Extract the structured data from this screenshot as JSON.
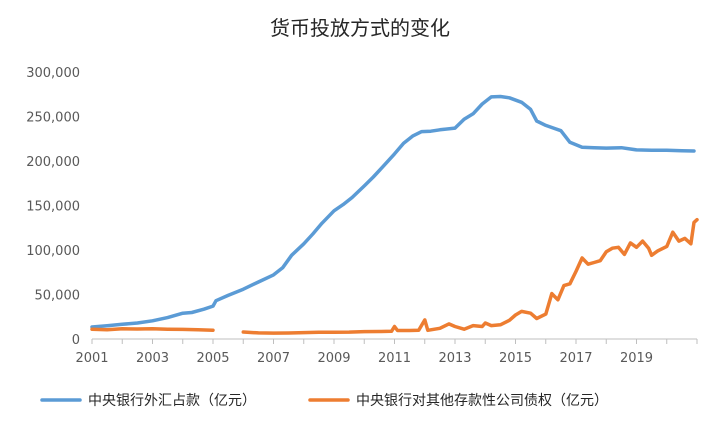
{
  "chart_data": {
    "type": "line",
    "title": "货币投放方式的变化",
    "xlabel": "",
    "ylabel": "",
    "xlim": [
      2001,
      2021
    ],
    "ylim": [
      0,
      300000
    ],
    "x_ticks": [
      2001,
      2003,
      2005,
      2007,
      2009,
      2011,
      2013,
      2015,
      2017,
      2019
    ],
    "y_ticks": [
      "0",
      "50,000",
      "100,000",
      "150,000",
      "200,000",
      "250,000",
      "300,000"
    ],
    "y_tick_values": [
      0,
      50000,
      100000,
      150000,
      200000,
      250000,
      300000
    ],
    "legend_position": "bottom",
    "grid": false,
    "series": [
      {
        "name": "中央银行外汇占款（亿元）",
        "color": "#5b9bd5",
        "points": [
          [
            2001.0,
            13500
          ],
          [
            2001.5,
            14800
          ],
          [
            2002.0,
            16500
          ],
          [
            2002.5,
            18000
          ],
          [
            2003.0,
            20500
          ],
          [
            2003.5,
            24000
          ],
          [
            2004.0,
            29000
          ],
          [
            2004.3,
            29800
          ],
          [
            2004.7,
            33500
          ],
          [
            2005.0,
            37000
          ],
          [
            2005.1,
            43000
          ],
          [
            2005.5,
            49000
          ],
          [
            2006.0,
            56000
          ],
          [
            2006.5,
            64000
          ],
          [
            2007.0,
            72000
          ],
          [
            2007.3,
            80000
          ],
          [
            2007.6,
            94000
          ],
          [
            2008.0,
            107000
          ],
          [
            2008.3,
            118000
          ],
          [
            2008.6,
            130000
          ],
          [
            2009.0,
            144000
          ],
          [
            2009.3,
            151000
          ],
          [
            2009.6,
            159000
          ],
          [
            2010.0,
            172000
          ],
          [
            2010.3,
            182000
          ],
          [
            2010.6,
            193000
          ],
          [
            2011.0,
            208000
          ],
          [
            2011.3,
            220000
          ],
          [
            2011.6,
            228000
          ],
          [
            2011.9,
            233000
          ],
          [
            2012.2,
            233500
          ],
          [
            2012.5,
            235000
          ],
          [
            2013.0,
            237000
          ],
          [
            2013.3,
            247000
          ],
          [
            2013.6,
            253000
          ],
          [
            2013.9,
            264000
          ],
          [
            2014.2,
            272000
          ],
          [
            2014.5,
            272500
          ],
          [
            2014.8,
            271000
          ],
          [
            2015.2,
            266000
          ],
          [
            2015.5,
            258000
          ],
          [
            2015.7,
            245000
          ],
          [
            2016.0,
            240000
          ],
          [
            2016.5,
            234000
          ],
          [
            2016.8,
            221000
          ],
          [
            2017.2,
            215500
          ],
          [
            2017.6,
            215000
          ],
          [
            2018.0,
            214500
          ],
          [
            2018.5,
            215000
          ],
          [
            2019.0,
            212500
          ],
          [
            2019.5,
            212000
          ],
          [
            2020.0,
            212000
          ],
          [
            2020.5,
            211500
          ],
          [
            2020.9,
            211200
          ]
        ]
      },
      {
        "name": "中央银行对其他存款性公司债权（亿元）",
        "color": "#ed7d31",
        "segments": [
          [
            [
              2001.0,
              11000
            ],
            [
              2001.5,
              10500
            ],
            [
              2002.0,
              11500
            ],
            [
              2002.5,
              11200
            ],
            [
              2003.0,
              11500
            ],
            [
              2003.5,
              11000
            ],
            [
              2004.0,
              10800
            ],
            [
              2004.5,
              10500
            ],
            [
              2005.0,
              9900
            ]
          ],
          [
            [
              2006.0,
              7900
            ],
            [
              2006.5,
              6800
            ],
            [
              2007.0,
              6600
            ],
            [
              2007.5,
              6700
            ],
            [
              2008.0,
              7200
            ],
            [
              2008.5,
              7500
            ],
            [
              2009.0,
              7600
            ],
            [
              2009.5,
              7700
            ],
            [
              2010.0,
              8300
            ],
            [
              2010.5,
              8400
            ],
            [
              2010.9,
              8600
            ],
            [
              2011.0,
              14000
            ],
            [
              2011.1,
              9500
            ],
            [
              2011.5,
              9500
            ],
            [
              2011.8,
              9800
            ],
            [
              2012.0,
              21500
            ],
            [
              2012.1,
              9800
            ],
            [
              2012.5,
              12000
            ],
            [
              2012.8,
              17000
            ],
            [
              2013.0,
              14000
            ],
            [
              2013.3,
              11000
            ],
            [
              2013.6,
              15000
            ],
            [
              2013.9,
              14000
            ],
            [
              2014.0,
              18000
            ],
            [
              2014.2,
              15000
            ],
            [
              2014.5,
              16000
            ],
            [
              2014.8,
              21000
            ],
            [
              2015.0,
              27000
            ],
            [
              2015.2,
              31000
            ],
            [
              2015.5,
              29000
            ],
            [
              2015.7,
              23000
            ],
            [
              2016.0,
              28000
            ],
            [
              2016.2,
              51000
            ],
            [
              2016.4,
              44000
            ],
            [
              2016.6,
              60000
            ],
            [
              2016.8,
              62000
            ],
            [
              2017.0,
              76000
            ],
            [
              2017.2,
              91000
            ],
            [
              2017.4,
              84000
            ],
            [
              2017.6,
              86000
            ],
            [
              2017.8,
              88000
            ],
            [
              2018.0,
              98000
            ],
            [
              2018.2,
              102000
            ],
            [
              2018.4,
              103000
            ],
            [
              2018.6,
              95000
            ],
            [
              2018.8,
              108000
            ],
            [
              2019.0,
              103000
            ],
            [
              2019.2,
              110000
            ],
            [
              2019.4,
              102000
            ],
            [
              2019.5,
              94000
            ],
            [
              2019.7,
              99000
            ],
            [
              2020.0,
              104000
            ],
            [
              2020.2,
              120000
            ],
            [
              2020.4,
              110000
            ],
            [
              2020.6,
              113000
            ],
            [
              2020.8,
              107000
            ],
            [
              2020.9,
              131000
            ],
            [
              2021.0,
              134000
            ]
          ]
        ]
      }
    ]
  }
}
